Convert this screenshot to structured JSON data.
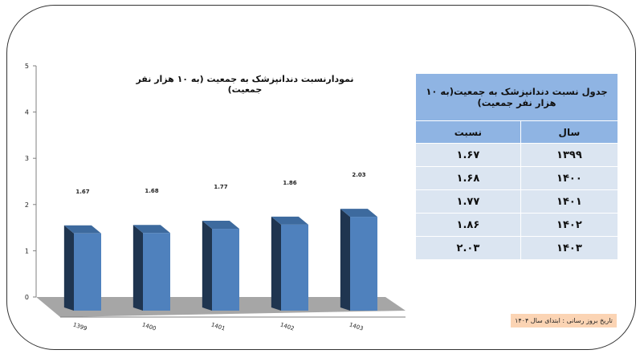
{
  "chart_data": {
    "type": "bar",
    "title": "نمودارنسبت دندانپزشک به جمعیت (به ۱۰ هزار نفر جمعیت)",
    "categories": [
      "1399",
      "1400",
      "1401",
      "1402",
      "1403"
    ],
    "values": [
      1.67,
      1.68,
      1.77,
      1.86,
      2.03
    ],
    "data_labels": [
      "1.67",
      "1.68",
      "1.77",
      "1.86",
      "2.03"
    ],
    "y_ticks": [
      "0",
      "1",
      "2",
      "3",
      "4",
      "5"
    ],
    "ylim": [
      0,
      5
    ],
    "xlabel": "",
    "ylabel": "",
    "grid": false,
    "style": "3d-column",
    "colors": {
      "bar_front": "#4f81bd",
      "bar_side": "#1f3550",
      "bar_top": "#3d6a9e",
      "floor": "#a6a6a6"
    }
  },
  "table": {
    "title": "جدول نسبت دندانپزشک به جمعیت(به ۱۰ هزار نفر جمعیت)",
    "headers": [
      "سال",
      "نسبت"
    ],
    "rows": [
      [
        "۱۳۹۹",
        "۱.۶۷"
      ],
      [
        "۱۴۰۰",
        "۱.۶۸"
      ],
      [
        "۱۴۰۱",
        "۱.۷۷"
      ],
      [
        "۱۴۰۲",
        "۱.۸۶"
      ],
      [
        "۱۴۰۳",
        "۲.۰۳"
      ]
    ],
    "colors": {
      "header": "#8fb4e3",
      "body": "#dbe5f1"
    }
  },
  "note": "تاریخ بروز رسانی : ابتدای سال ۱۴۰۴"
}
